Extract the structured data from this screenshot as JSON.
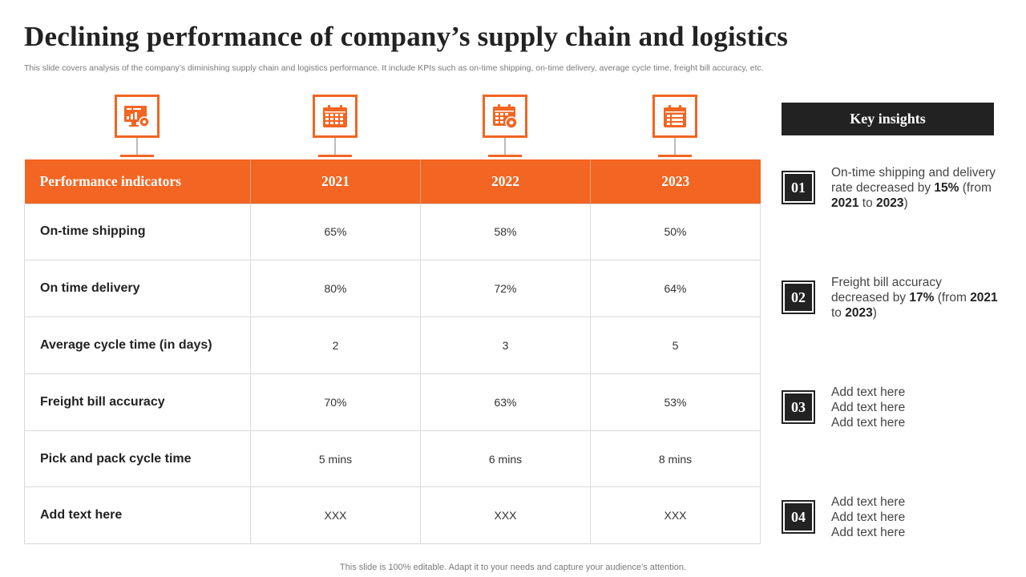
{
  "title": "Declining performance of company’s supply chain and logistics",
  "subtitle": "This slide covers analysis of the company’s diminishing supply chain and logistics performance. It include KPIs such as on-time shipping, on-time delivery, average cycle time, freight bill accuracy, etc.",
  "icons": [
    "analytics-monitor-icon",
    "calendar-icon",
    "calendar-settings-icon",
    "calendar-list-icon"
  ],
  "colors": {
    "accent": "#f26522",
    "dark": "#222222",
    "border": "#d9d9d9"
  },
  "table": {
    "headers": [
      "Performance indicators",
      "2021",
      "2022",
      "2023"
    ],
    "rows": [
      {
        "label": "On-time shipping",
        "values": [
          "65%",
          "58%",
          "50%"
        ]
      },
      {
        "label": "On time delivery",
        "values": [
          "80%",
          "72%",
          "64%"
        ]
      },
      {
        "label": "Average cycle time (in days)",
        "values": [
          "2",
          "3",
          "5"
        ]
      },
      {
        "label": "Freight bill accuracy",
        "values": [
          "70%",
          "63%",
          "53%"
        ]
      },
      {
        "label": "Pick and pack cycle time",
        "values": [
          "5 mins",
          "6 mins",
          "8 mins"
        ]
      },
      {
        "label": "Add text here",
        "values": [
          "XXX",
          "XXX",
          "XXX"
        ]
      }
    ]
  },
  "insights": {
    "header": "Key insights",
    "items": [
      {
        "num": "01",
        "parts": {
          "a": "On-time shipping and delivery rate decreased by ",
          "b": "15%",
          "c": " (from ",
          "d": "2021",
          "e": " to ",
          "f": "2023",
          "g": ")"
        }
      },
      {
        "num": "02",
        "parts": {
          "a": "Freight bill accuracy decreased by ",
          "b": "17%",
          "c": " (from ",
          "d": "2021",
          "e": " to ",
          "f": "2023",
          "g": ")"
        }
      },
      {
        "num": "03",
        "lines": [
          "Add text here",
          "Add text here",
          "Add text here"
        ]
      },
      {
        "num": "04",
        "lines": [
          "Add text here",
          "Add text here",
          "Add text here"
        ]
      }
    ]
  },
  "footer": "This slide is 100% editable. Adapt it to your needs and capture your audience’s attention."
}
